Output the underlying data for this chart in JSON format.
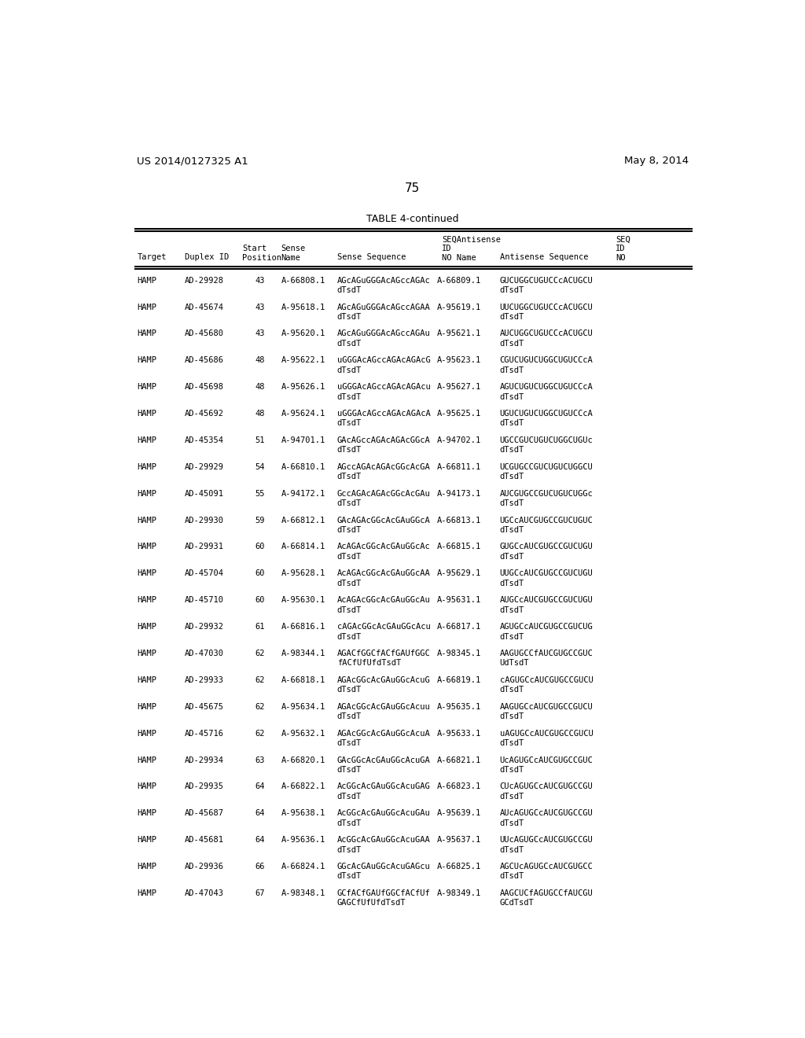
{
  "header_left": "US 2014/0127325 A1",
  "header_right": "May 8, 2014",
  "page_number": "75",
  "table_title": "TABLE 4-continued",
  "rows": [
    [
      "HAMP",
      "AD-29928",
      "43",
      "A-66808.1",
      "AGcAGuGGGAcAGccAGAc\ndTsdT",
      "A-66809.1",
      "GUCUGGCUGUCCcACUGCU\ndTsdT"
    ],
    [
      "HAMP",
      "AD-45674",
      "43",
      "A-95618.1",
      "AGcAGuGGGAcAGccAGAA\ndTsdT",
      "A-95619.1",
      "UUCUGGCUGUCCcACUGCU\ndTsdT"
    ],
    [
      "HAMP",
      "AD-45680",
      "43",
      "A-95620.1",
      "AGcAGuGGGAcAGccAGAu\ndTsdT",
      "A-95621.1",
      "AUCUGGCUGUCCcACUGCU\ndTsdT"
    ],
    [
      "HAMP",
      "AD-45686",
      "48",
      "A-95622.1",
      "uGGGAcAGccAGAcAGAcG\ndTsdT",
      "A-95623.1",
      "CGUCUGUCUGGCUGUCCcA\ndTsdT"
    ],
    [
      "HAMP",
      "AD-45698",
      "48",
      "A-95626.1",
      "uGGGAcAGccAGAcAGAcu\ndTsdT",
      "A-95627.1",
      "AGUCUGUCUGGCUGUCCcA\ndTsdT"
    ],
    [
      "HAMP",
      "AD-45692",
      "48",
      "A-95624.1",
      "uGGGAcAGccAGAcAGAcA\ndTsdT",
      "A-95625.1",
      "UGUCUGUCUGGCUGUCCcA\ndTsdT"
    ],
    [
      "HAMP",
      "AD-45354",
      "51",
      "A-94701.1",
      "GAcAGccAGAcAGAcGGcA\ndTsdT",
      "A-94702.1",
      "UGCCGUCUGUCUGGCUGUc\ndTsdT"
    ],
    [
      "HAMP",
      "AD-29929",
      "54",
      "A-66810.1",
      "AGccAGAcAGAcGGcAcGA\ndTsdT",
      "A-66811.1",
      "UCGUGCCGUCUGUCUGGCU\ndTsdT"
    ],
    [
      "HAMP",
      "AD-45091",
      "55",
      "A-94172.1",
      "GccAGAcAGAcGGcAcGAu\ndTsdT",
      "A-94173.1",
      "AUCGUGCCGUCUGUCUGGc\ndTsdT"
    ],
    [
      "HAMP",
      "AD-29930",
      "59",
      "A-66812.1",
      "GAcAGAcGGcAcGAuGGcA\ndTsdT",
      "A-66813.1",
      "UGCcAUCGUGCCGUCUGUC\ndTsdT"
    ],
    [
      "HAMP",
      "AD-29931",
      "60",
      "A-66814.1",
      "AcAGAcGGcAcGAuGGcAc\ndTsdT",
      "A-66815.1",
      "GUGCcAUCGUGCCGUCUGU\ndTsdT"
    ],
    [
      "HAMP",
      "AD-45704",
      "60",
      "A-95628.1",
      "AcAGAcGGcAcGAuGGcAA\ndTsdT",
      "A-95629.1",
      "UUGCcAUCGUGCCGUCUGU\ndTsdT"
    ],
    [
      "HAMP",
      "AD-45710",
      "60",
      "A-95630.1",
      "AcAGAcGGcAcGAuGGcAu\ndTsdT",
      "A-95631.1",
      "AUGCcAUCGUGCCGUCUGU\ndTsdT"
    ],
    [
      "HAMP",
      "AD-29932",
      "61",
      "A-66816.1",
      "cAGAcGGcAcGAuGGcAcu\ndTsdT",
      "A-66817.1",
      "AGUGCcAUCGUGCCGUCUG\ndTsdT"
    ],
    [
      "HAMP",
      "AD-47030",
      "62",
      "A-98344.1",
      "AGACfGGCfACfGAUfGGC\nfACfUfUfdTsdT",
      "A-98345.1",
      "AAGUGCCfAUCGUGCCGUC\nUdTsdT"
    ],
    [
      "HAMP",
      "AD-29933",
      "62",
      "A-66818.1",
      "AGAcGGcAcGAuGGcAcuG\ndTsdT",
      "A-66819.1",
      "cAGUGCcAUCGUGCCGUCU\ndTsdT"
    ],
    [
      "HAMP",
      "AD-45675",
      "62",
      "A-95634.1",
      "AGAcGGcAcGAuGGcAcuu\ndTsdT",
      "A-95635.1",
      "AAGUGCcAUCGUGCCGUCU\ndTsdT"
    ],
    [
      "HAMP",
      "AD-45716",
      "62",
      "A-95632.1",
      "AGAcGGcAcGAuGGcAcuA\ndTsdT",
      "A-95633.1",
      "uAGUGCcAUCGUGCCGUCU\ndTsdT"
    ],
    [
      "HAMP",
      "AD-29934",
      "63",
      "A-66820.1",
      "GAcGGcAcGAuGGcAcuGA\ndTsdT",
      "A-66821.1",
      "UcAGUGCcAUCGUGCCGUC\ndTsdT"
    ],
    [
      "HAMP",
      "AD-29935",
      "64",
      "A-66822.1",
      "AcGGcAcGAuGGcAcuGAG\ndTsdT",
      "A-66823.1",
      "CUcAGUGCcAUCGUGCCGU\ndTsdT"
    ],
    [
      "HAMP",
      "AD-45687",
      "64",
      "A-95638.1",
      "AcGGcAcGAuGGcAcuGAu\ndTsdT",
      "A-95639.1",
      "AUcAGUGCcAUCGUGCCGU\ndTsdT"
    ],
    [
      "HAMP",
      "AD-45681",
      "64",
      "A-95636.1",
      "AcGGcAcGAuGGcAcuGAA\ndTsdT",
      "A-95637.1",
      "UUcAGUGCcAUCGUGCCGU\ndTsdT"
    ],
    [
      "HAMP",
      "AD-29936",
      "66",
      "A-66824.1",
      "GGcAcGAuGGcAcuGAGcu\ndTsdT",
      "A-66825.1",
      "AGCUcAGUGCcAUCGUGCC\ndTsdT"
    ],
    [
      "HAMP",
      "AD-47043",
      "67",
      "A-98348.1",
      "GCfACfGAUfGGCfACfUf\nGAGCfUfUfdTsdT",
      "A-98349.1",
      "AAGCUCfAGUGCCfAUCGU\nGCdTsdT"
    ]
  ],
  "bg_color": "#ffffff",
  "text_color": "#000000"
}
